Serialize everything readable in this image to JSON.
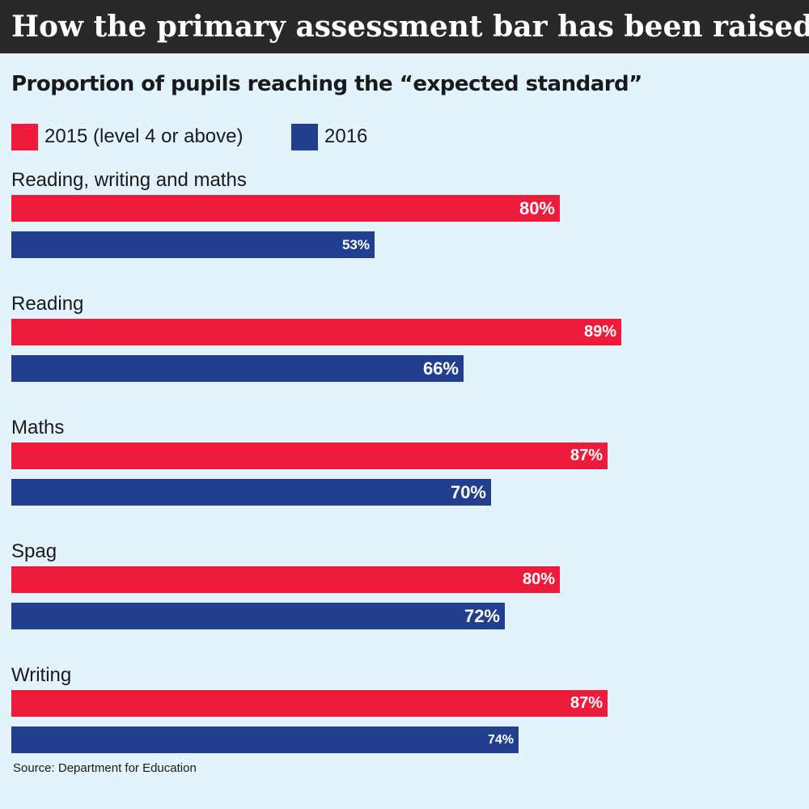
{
  "header": {
    "title": "How the primary assessment bar has been raised"
  },
  "chart_data": {
    "type": "bar",
    "orientation": "horizontal",
    "title": "How the primary assessment bar has been raised",
    "subtitle": "Proportion of pupils reaching the “expected standard”",
    "xlabel": "",
    "ylabel": "",
    "xlim": [
      0,
      100
    ],
    "unit": "%",
    "legend_position": "top-left",
    "categories": [
      "Reading, writing and maths",
      "Reading",
      "Maths",
      "Spag",
      "Writing"
    ],
    "series": [
      {
        "name": "2015 (level 4 or above)",
        "color": "#ee1c3a",
        "values": [
          80,
          89,
          87,
          80,
          87
        ],
        "labels": [
          "80%",
          "89%",
          "87%",
          "80%",
          "87%"
        ]
      },
      {
        "name": "2016",
        "color": "#213f8e",
        "values": [
          53,
          66,
          70,
          72,
          74
        ],
        "labels": [
          "53%",
          "66%",
          "70%",
          "72%",
          "74%"
        ]
      }
    ],
    "source": "Source: Department for Education"
  }
}
